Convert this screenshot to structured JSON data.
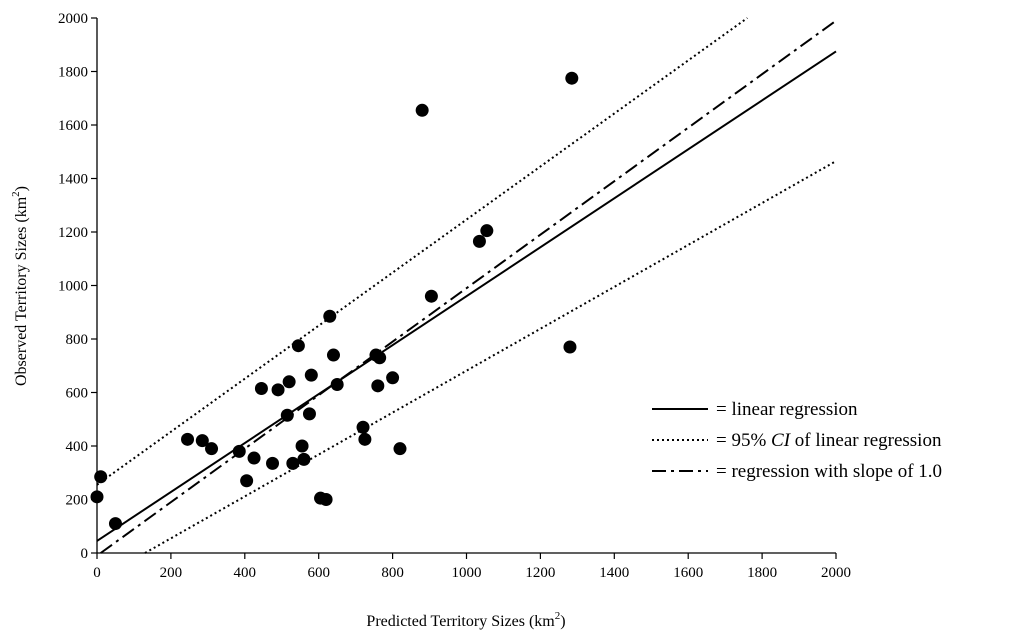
{
  "chart_data": {
    "type": "scatter",
    "xlabel": "Predicted Territory Sizes (km",
    "xlabel_sup": "2",
    "xlabel_end": ")",
    "ylabel": "Observed Territory Sizes (km",
    "ylabel_sup": "2",
    "ylabel_end": ")",
    "xlim": [
      0,
      2000
    ],
    "ylim": [
      0,
      2000
    ],
    "xticks": [
      "0",
      "200",
      "400",
      "600",
      "800",
      "1000",
      "1200",
      "1400",
      "1600",
      "1800",
      "2000"
    ],
    "yticks": [
      "0",
      "200",
      "400",
      "600",
      "800",
      "1000",
      "1200",
      "1400",
      "1600",
      "1800",
      "2000"
    ],
    "grid": false,
    "legend_position": "right",
    "points": [
      [
        0,
        210
      ],
      [
        10,
        285
      ],
      [
        50,
        110
      ],
      [
        245,
        425
      ],
      [
        285,
        420
      ],
      [
        310,
        390
      ],
      [
        385,
        380
      ],
      [
        405,
        270
      ],
      [
        425,
        355
      ],
      [
        445,
        615
      ],
      [
        475,
        335
      ],
      [
        490,
        610
      ],
      [
        515,
        515
      ],
      [
        520,
        640
      ],
      [
        530,
        335
      ],
      [
        545,
        775
      ],
      [
        555,
        400
      ],
      [
        560,
        350
      ],
      [
        575,
        520
      ],
      [
        580,
        665
      ],
      [
        605,
        205
      ],
      [
        620,
        200
      ],
      [
        630,
        885
      ],
      [
        640,
        740
      ],
      [
        650,
        630
      ],
      [
        720,
        470
      ],
      [
        725,
        425
      ],
      [
        755,
        740
      ],
      [
        760,
        625
      ],
      [
        765,
        730
      ],
      [
        800,
        655
      ],
      [
        820,
        390
      ],
      [
        880,
        1655
      ],
      [
        905,
        960
      ],
      [
        1035,
        1165
      ],
      [
        1055,
        1205
      ],
      [
        1280,
        770
      ],
      [
        1285,
        1775
      ]
    ],
    "lines": [
      {
        "name": "linear regression",
        "style": "solid",
        "x": [
          0,
          2000
        ],
        "y": [
          45,
          1875
        ]
      },
      {
        "name": "95% CI upper",
        "style": "dotted",
        "x": [
          0,
          1760
        ],
        "y": [
          255,
          2000
        ]
      },
      {
        "name": "95% CI lower",
        "style": "dotted",
        "x": [
          130,
          2000
        ],
        "y": [
          0,
          1465
        ]
      },
      {
        "name": "regression with slope of 1.0",
        "style": "dashdot",
        "x": [
          0,
          2000
        ],
        "y": [
          -10,
          1990
        ]
      }
    ],
    "legend": [
      {
        "label": "= linear regression",
        "style": "solid"
      },
      {
        "label_pre": "= 95% ",
        "label_italic": "CI",
        "label_post": " of linear regression",
        "style": "dotted"
      },
      {
        "label": "= regression with slope of 1.0",
        "style": "dashdot"
      }
    ]
  }
}
